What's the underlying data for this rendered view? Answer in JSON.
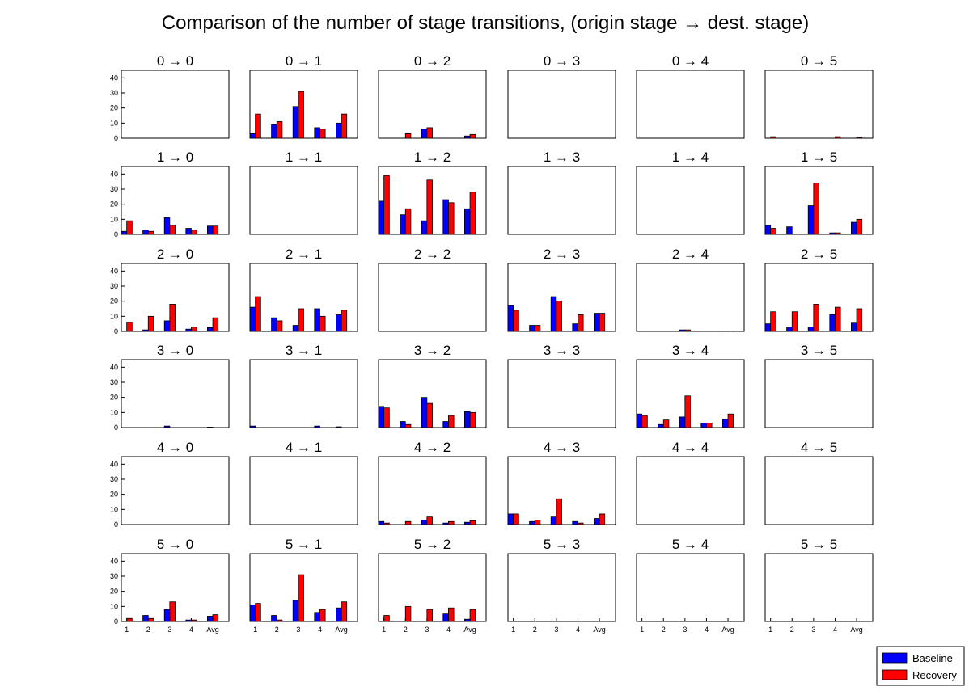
{
  "chart_data": {
    "type": "bar",
    "title": "Comparison of the number of stage transitions, (origin stage → dest. stage)",
    "categories": [
      "1",
      "2",
      "3",
      "4",
      "Avg"
    ],
    "ylim": [
      0,
      45
    ],
    "yticks": [
      "0",
      "10",
      "20",
      "30",
      "40"
    ],
    "grid": false,
    "legend_position": "bottom-right",
    "series": [
      {
        "name": "Baseline",
        "color": "#0000ff"
      },
      {
        "name": "Recovery",
        "color": "#ff0000"
      }
    ],
    "panels": [
      {
        "title": "0 → 0",
        "baseline": [
          0,
          0,
          0,
          0,
          0
        ],
        "recovery": [
          0,
          0,
          0,
          0,
          0
        ]
      },
      {
        "title": "0 → 1",
        "baseline": [
          3,
          9,
          21,
          7,
          10
        ],
        "recovery": [
          16,
          11,
          31,
          6,
          16
        ]
      },
      {
        "title": "0 → 2",
        "baseline": [
          0,
          0,
          6,
          0,
          1.5
        ],
        "recovery": [
          0,
          3,
          7,
          0,
          2.5
        ]
      },
      {
        "title": "0 → 3",
        "baseline": [
          0,
          0,
          0,
          0,
          0
        ],
        "recovery": [
          0,
          0,
          0,
          0,
          0
        ]
      },
      {
        "title": "0 → 4",
        "baseline": [
          0,
          0,
          0,
          0,
          0
        ],
        "recovery": [
          0,
          0,
          0,
          0,
          0
        ]
      },
      {
        "title": "0 → 5",
        "baseline": [
          0,
          0,
          0,
          0,
          0
        ],
        "recovery": [
          1,
          0,
          0,
          1,
          0.5
        ]
      },
      {
        "title": "1 → 0",
        "baseline": [
          2,
          3,
          11,
          4,
          5.5
        ],
        "recovery": [
          9,
          2,
          6,
          3,
          5.5
        ]
      },
      {
        "title": "1 → 1",
        "baseline": [
          0,
          0,
          0,
          0,
          0
        ],
        "recovery": [
          0,
          0,
          0,
          0,
          0
        ]
      },
      {
        "title": "1 → 2",
        "baseline": [
          22,
          13,
          9,
          23,
          17
        ],
        "recovery": [
          39,
          17,
          36,
          21,
          28
        ]
      },
      {
        "title": "1 → 3",
        "baseline": [
          0,
          0,
          0,
          0,
          0
        ],
        "recovery": [
          0,
          0,
          0,
          0,
          0
        ]
      },
      {
        "title": "1 → 4",
        "baseline": [
          0,
          0,
          0,
          0,
          0
        ],
        "recovery": [
          0,
          0,
          0,
          0,
          0
        ]
      },
      {
        "title": "1 → 5",
        "baseline": [
          6,
          5,
          19,
          1,
          8
        ],
        "recovery": [
          4,
          0,
          34,
          1,
          10
        ]
      },
      {
        "title": "2 → 0",
        "baseline": [
          0,
          1,
          7,
          1.5,
          2.5
        ],
        "recovery": [
          6,
          10,
          18,
          3,
          9
        ]
      },
      {
        "title": "2 → 1",
        "baseline": [
          16,
          9,
          4,
          15,
          11
        ],
        "recovery": [
          23,
          7,
          15,
          10,
          14
        ]
      },
      {
        "title": "2 → 2",
        "baseline": [
          0,
          0,
          0,
          0,
          0
        ],
        "recovery": [
          0,
          0,
          0,
          0,
          0
        ]
      },
      {
        "title": "2 → 3",
        "baseline": [
          17,
          4,
          23,
          5,
          12
        ],
        "recovery": [
          14,
          4,
          20,
          11,
          12
        ]
      },
      {
        "title": "2 → 4",
        "baseline": [
          0,
          0,
          1,
          0,
          0.3
        ],
        "recovery": [
          0,
          0,
          1,
          0,
          0.3
        ]
      },
      {
        "title": "2 → 5",
        "baseline": [
          5,
          3,
          3,
          11,
          5.5
        ],
        "recovery": [
          13,
          13,
          18,
          16,
          15
        ]
      },
      {
        "title": "3 → 0",
        "baseline": [
          0,
          0,
          1,
          0,
          0.3
        ],
        "recovery": [
          0,
          0,
          0,
          0,
          0
        ]
      },
      {
        "title": "3 → 1",
        "baseline": [
          1,
          0,
          0,
          1,
          0.5
        ],
        "recovery": [
          0,
          0,
          0,
          0,
          0
        ]
      },
      {
        "title": "3 → 2",
        "baseline": [
          14,
          4,
          20,
          4,
          10.5
        ],
        "recovery": [
          13,
          2,
          16,
          8,
          10
        ]
      },
      {
        "title": "3 → 3",
        "baseline": [
          0,
          0,
          0,
          0,
          0
        ],
        "recovery": [
          0,
          0,
          0,
          0,
          0
        ]
      },
      {
        "title": "3 → 4",
        "baseline": [
          9,
          2,
          7,
          3,
          5.5
        ],
        "recovery": [
          8,
          5,
          21,
          3,
          9
        ]
      },
      {
        "title": "3 → 5",
        "baseline": [
          0,
          0,
          0,
          0,
          0
        ],
        "recovery": [
          0,
          0,
          0,
          0,
          0
        ]
      },
      {
        "title": "4 → 0",
        "baseline": [
          0,
          0,
          0,
          0,
          0
        ],
        "recovery": [
          0,
          0,
          0,
          0,
          0
        ]
      },
      {
        "title": "4 → 1",
        "baseline": [
          0,
          0,
          0,
          0,
          0
        ],
        "recovery": [
          0,
          0,
          0,
          0,
          0
        ]
      },
      {
        "title": "4 → 2",
        "baseline": [
          2,
          0,
          3,
          1,
          1.5
        ],
        "recovery": [
          1,
          2,
          5,
          2,
          2.5
        ]
      },
      {
        "title": "4 → 3",
        "baseline": [
          7,
          2,
          5,
          2,
          4
        ],
        "recovery": [
          7,
          3,
          17,
          1,
          7
        ]
      },
      {
        "title": "4 → 4",
        "baseline": [
          0,
          0,
          0,
          0,
          0
        ],
        "recovery": [
          0,
          0,
          0,
          0,
          0
        ]
      },
      {
        "title": "4 → 5",
        "baseline": [
          0,
          0,
          0,
          0,
          0
        ],
        "recovery": [
          0,
          0,
          0,
          0,
          0
        ]
      },
      {
        "title": "5 → 0",
        "baseline": [
          0,
          4,
          8,
          1,
          3.5
        ],
        "recovery": [
          2,
          2,
          13,
          1,
          4.5
        ]
      },
      {
        "title": "5 → 1",
        "baseline": [
          11,
          4,
          14,
          6,
          9
        ],
        "recovery": [
          12,
          1,
          31,
          8,
          13
        ]
      },
      {
        "title": "5 → 2",
        "baseline": [
          0,
          0,
          0,
          5,
          1.5
        ],
        "recovery": [
          4,
          10,
          8,
          9,
          8
        ]
      },
      {
        "title": "5 → 3",
        "baseline": [
          0,
          0,
          0,
          0,
          0
        ],
        "recovery": [
          0,
          0,
          0,
          0,
          0
        ]
      },
      {
        "title": "5 → 4",
        "baseline": [
          0,
          0,
          0,
          0,
          0
        ],
        "recovery": [
          0,
          0,
          0,
          0,
          0
        ]
      },
      {
        "title": "5 → 5",
        "baseline": [
          0,
          0,
          0,
          0,
          0
        ],
        "recovery": [
          0,
          0,
          0,
          0,
          0
        ]
      }
    ]
  }
}
